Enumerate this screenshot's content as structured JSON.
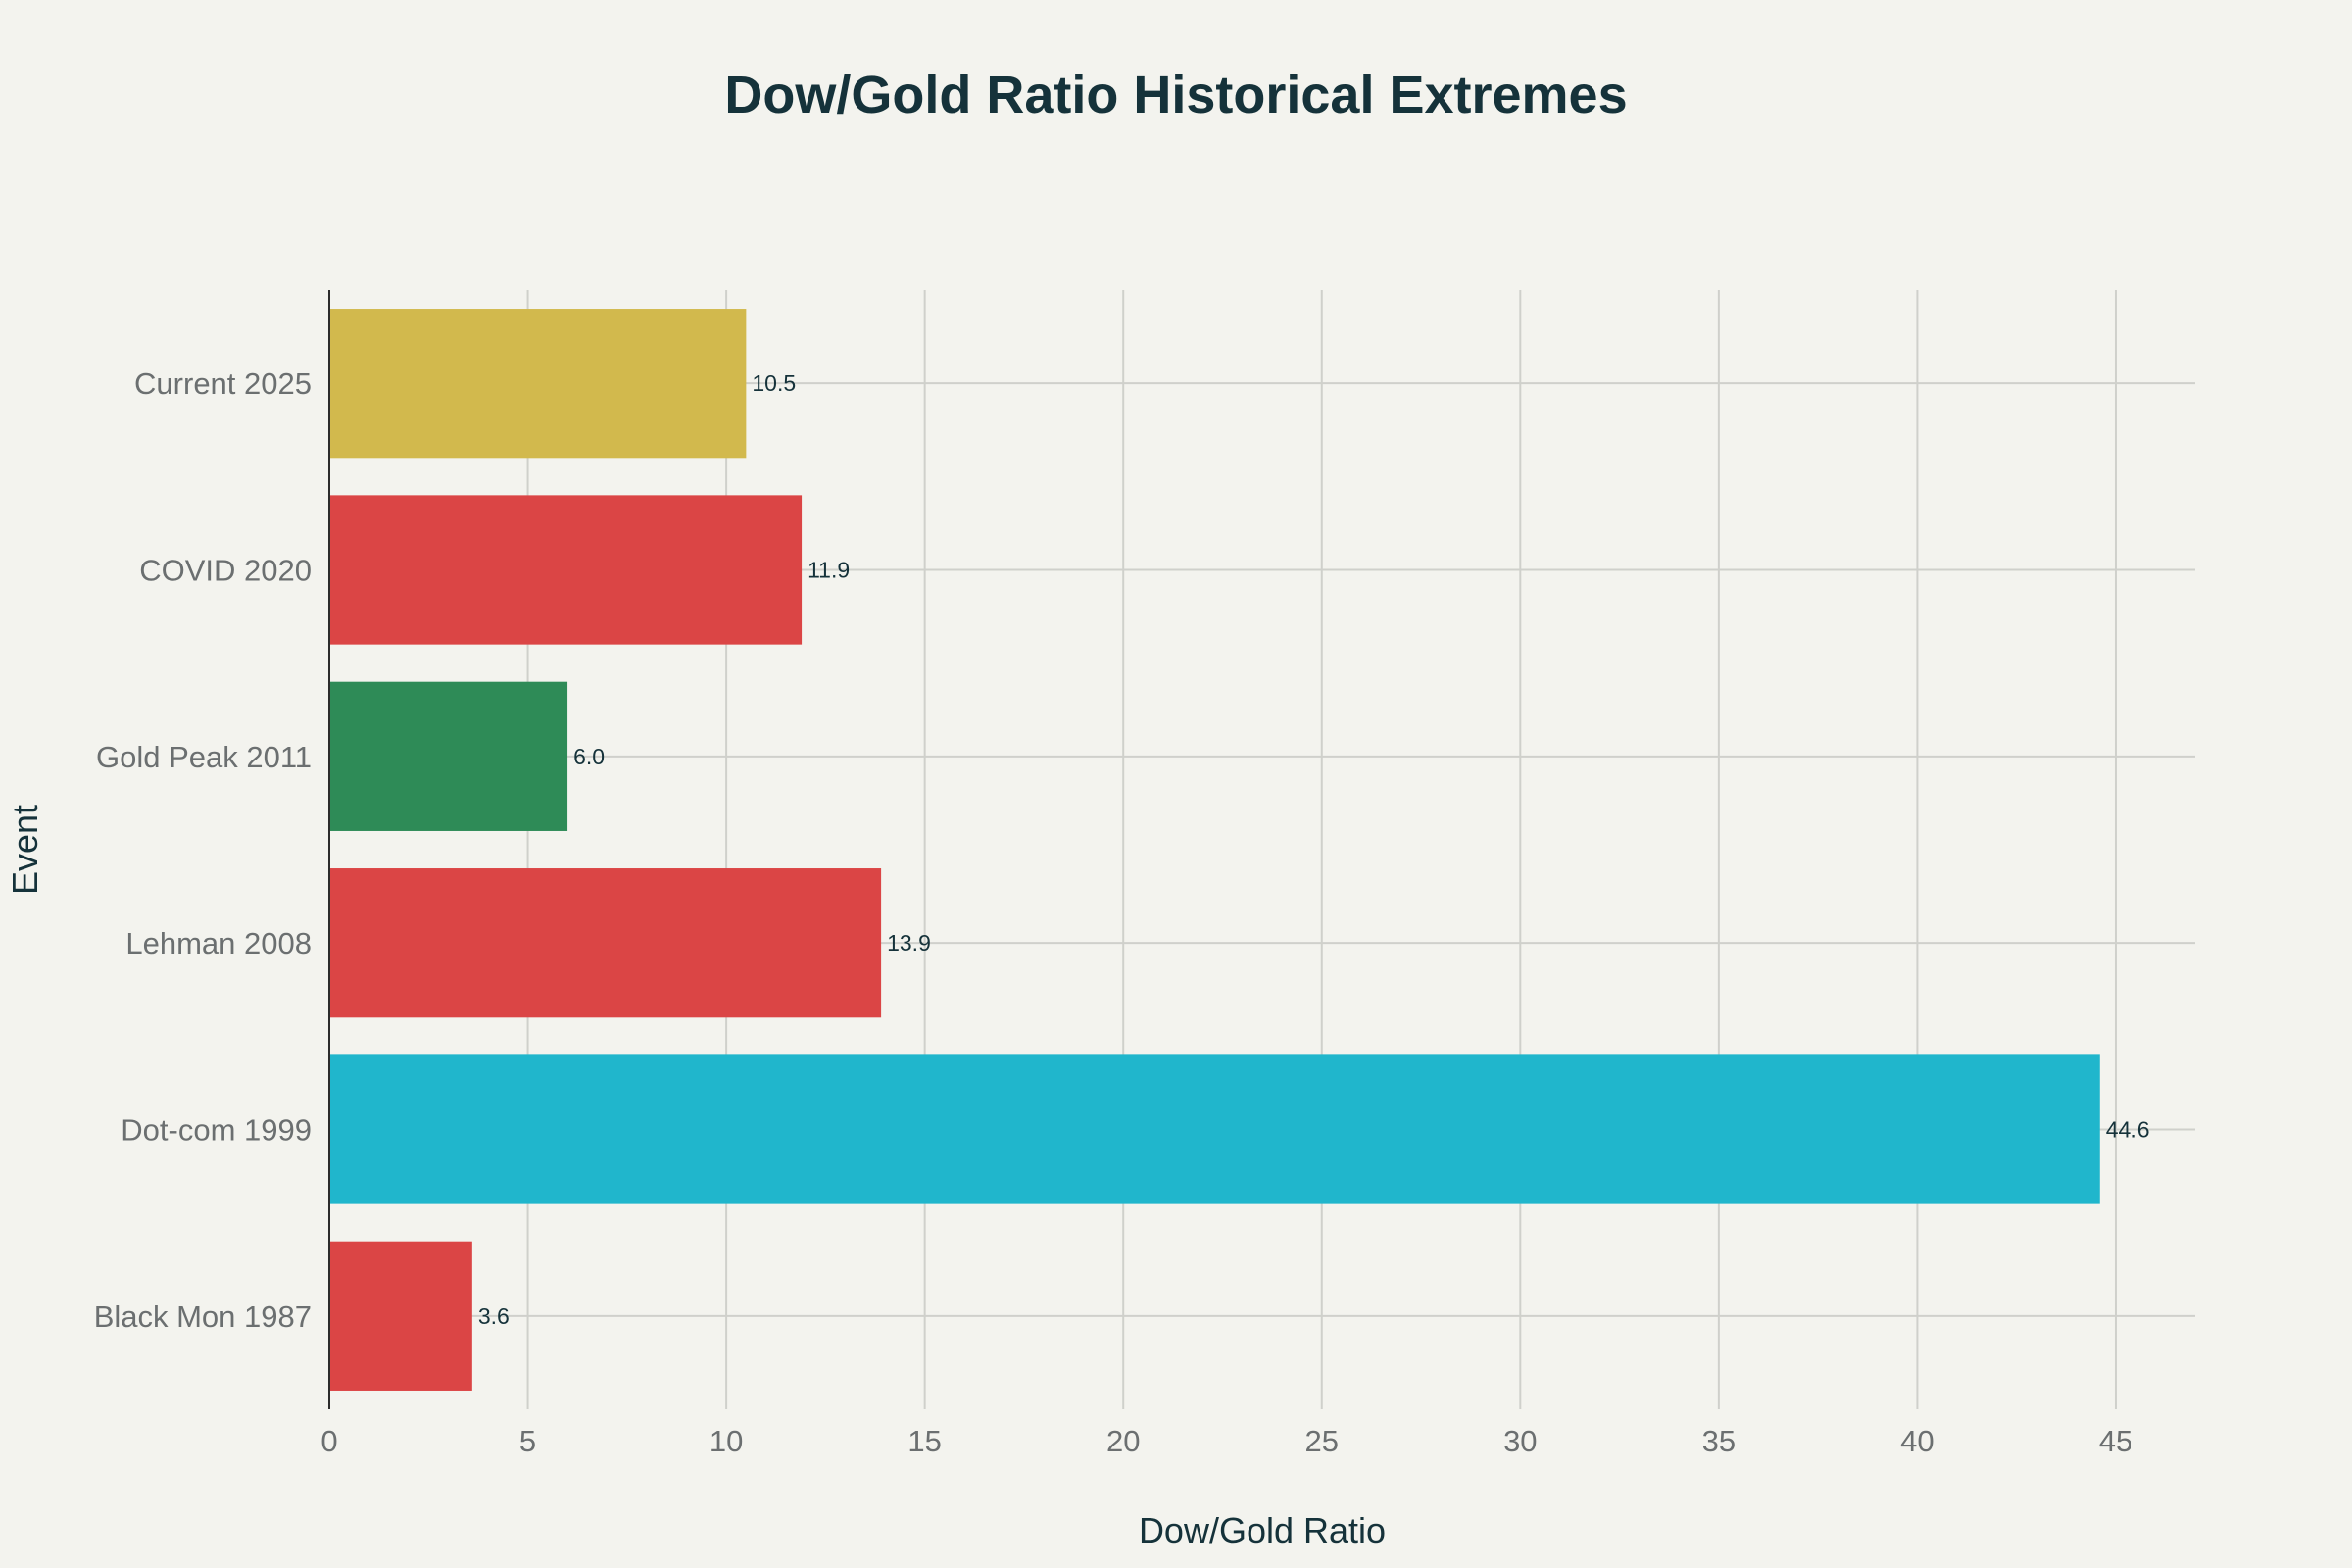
{
  "chart_data": {
    "type": "bar",
    "orientation": "horizontal",
    "title": "Dow/Gold Ratio Historical Extremes",
    "xlabel": "Dow/Gold Ratio",
    "ylabel": "Event",
    "xlim": [
      0,
      47
    ],
    "xticks": [
      0,
      5,
      10,
      15,
      20,
      25,
      30,
      35,
      40,
      45
    ],
    "grid": true,
    "categories": [
      "Current 2025",
      "COVID 2020",
      "Gold Peak 2011",
      "Lehman 2008",
      "Dot-com 1999",
      "Black Mon 1987"
    ],
    "values": [
      10.5,
      11.9,
      6.0,
      13.9,
      44.6,
      3.6
    ],
    "value_labels": [
      "10.5",
      "11.9",
      "6.0",
      "13.9",
      "44.6",
      "3.6"
    ],
    "colors": [
      "#d2b94d",
      "#db4545",
      "#2e8b57",
      "#db4545",
      "#20b6cc",
      "#db4545"
    ]
  }
}
